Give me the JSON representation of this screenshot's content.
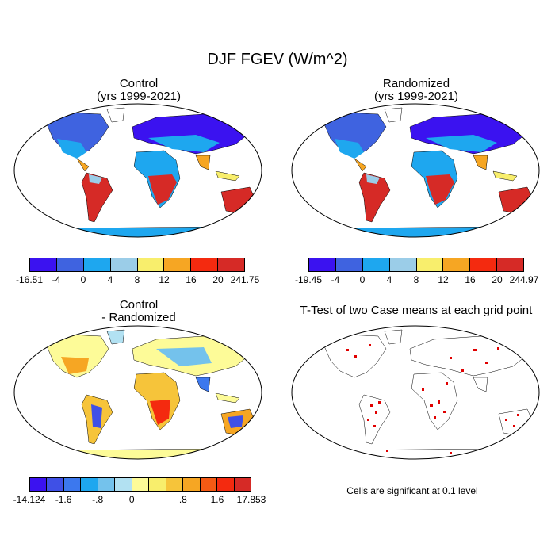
{
  "figure": {
    "title": "DJF FGEV (W/m^2)",
    "note": "Cells are significant at 0.1 level"
  },
  "panels": [
    {
      "title_line1": "Control",
      "title_line2": "(yrs 1999-2021)"
    },
    {
      "title_line1": "Randomized",
      "title_line2": "(yrs 1999-2021)"
    },
    {
      "title_line1": "Control",
      "title_line2": "- Randomized"
    },
    {
      "title_line1": "T-Test of two Case means at each grid point",
      "title_line2": ""
    }
  ],
  "colorbars": [
    {
      "colors": [
        "#3b12f0",
        "#3f63e0",
        "#1ea7ef",
        "#9bcde8",
        "#f8ee6c",
        "#f6a623",
        "#f42a0f",
        "#d62a26"
      ],
      "labels": [
        "-16.51",
        "-4",
        "0",
        "4",
        "8",
        "12",
        "16",
        "20",
        "241.75"
      ]
    },
    {
      "colors": [
        "#3b12f0",
        "#3f63e0",
        "#1ea7ef",
        "#9bcde8",
        "#f8ee6c",
        "#f6a623",
        "#f42a0f",
        "#d62a26"
      ],
      "labels": [
        "-19.45",
        "-4",
        "0",
        "4",
        "8",
        "12",
        "16",
        "20",
        "244.97"
      ]
    },
    {
      "colors": [
        "#3b12f0",
        "#3f50e6",
        "#3c78ee",
        "#1ea7ef",
        "#74c2ec",
        "#b2e1f2",
        "#fdfb98",
        "#f8ee6c",
        "#f6c43a",
        "#f6a623",
        "#f45a14",
        "#f42a0f",
        "#d62a26"
      ],
      "labels": [
        "-14.124",
        "-1.6",
        "-.8",
        "0",
        ".8",
        "1.6",
        "17.853"
      ],
      "label_positions": [
        0,
        2,
        4,
        6,
        9,
        11,
        13
      ]
    }
  ]
}
